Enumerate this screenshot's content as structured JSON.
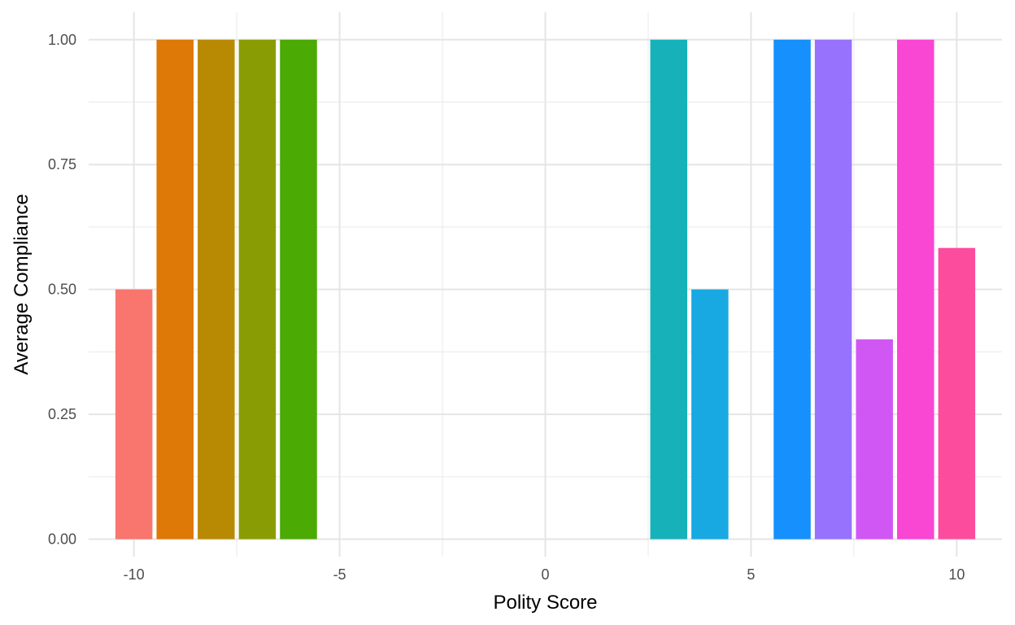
{
  "chart_data": {
    "type": "bar",
    "title": "",
    "xlabel": "Polity Score",
    "ylabel": "Average Compliance",
    "xlim": [
      -11.1,
      11.1
    ],
    "ylim": [
      -0.035,
      1.055
    ],
    "x_ticks": [
      -10,
      -5,
      0,
      5,
      10
    ],
    "x_tick_labels": [
      "-10",
      "-5",
      "0",
      "5",
      "10"
    ],
    "y_ticks": [
      0,
      0.25,
      0.5,
      0.75,
      1.0
    ],
    "y_tick_labels": [
      "0.00",
      "0.25",
      "0.50",
      "0.75",
      "1.00"
    ],
    "grid": true,
    "legend": "none",
    "bar_width": 0.9,
    "bars": [
      {
        "x": -10,
        "value": 0.5,
        "color": "#F8766D"
      },
      {
        "x": -9,
        "value": 1.0,
        "color": "#DE7806"
      },
      {
        "x": -8,
        "value": 1.0,
        "color": "#B88A04"
      },
      {
        "x": -7,
        "value": 1.0,
        "color": "#8A9C04"
      },
      {
        "x": -6,
        "value": 1.0,
        "color": "#4CAA04"
      },
      {
        "x": 3,
        "value": 1.0,
        "color": "#17B2B9"
      },
      {
        "x": 4,
        "value": 0.5,
        "color": "#19A9E2"
      },
      {
        "x": 6,
        "value": 1.0,
        "color": "#1690FC"
      },
      {
        "x": 7,
        "value": 1.0,
        "color": "#9772FC"
      },
      {
        "x": 8,
        "value": 0.4,
        "color": "#D157F4"
      },
      {
        "x": 9,
        "value": 1.0,
        "color": "#F946D3"
      },
      {
        "x": 10,
        "value": 0.583,
        "color": "#FC4C9E"
      }
    ]
  }
}
